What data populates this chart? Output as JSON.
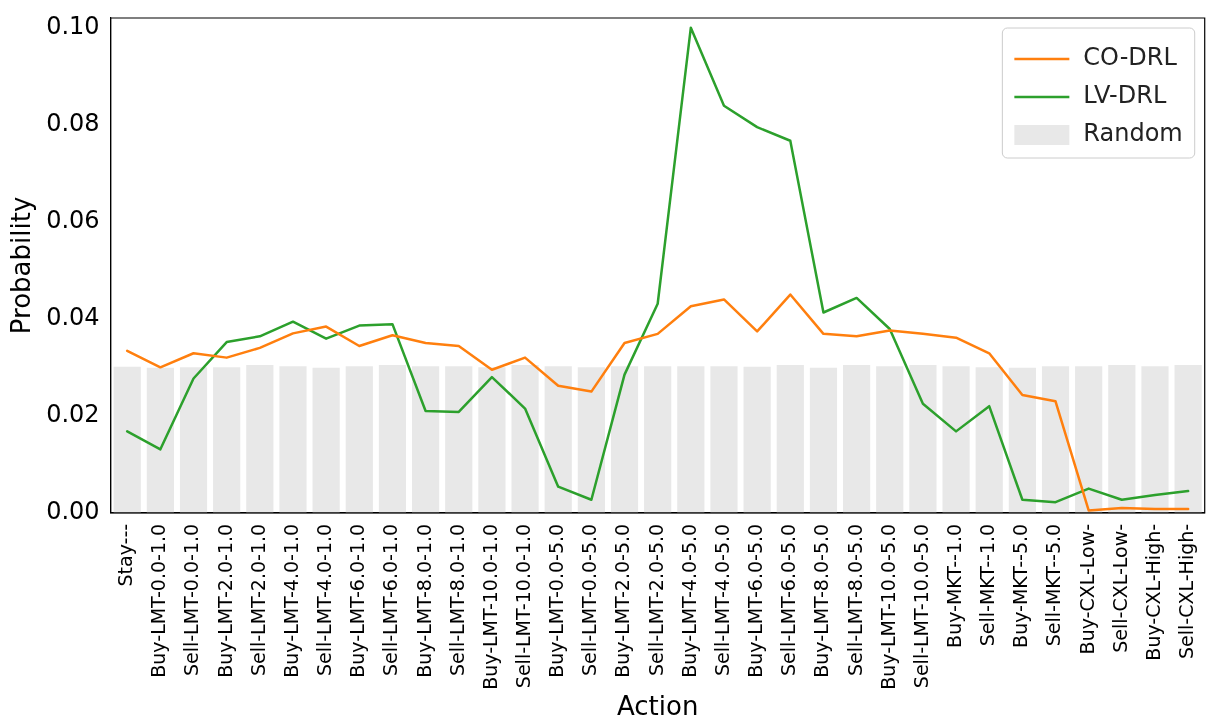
{
  "chart_data": {
    "type": "line",
    "xlabel": "Action",
    "ylabel": "Probability",
    "categories": [
      "Stay---",
      "Buy-LMT-0.0-1.0",
      "Sell-LMT-0.0-1.0",
      "Buy-LMT-2.0-1.0",
      "Sell-LMT-2.0-1.0",
      "Buy-LMT-4.0-1.0",
      "Sell-LMT-4.0-1.0",
      "Buy-LMT-6.0-1.0",
      "Sell-LMT-6.0-1.0",
      "Buy-LMT-8.0-1.0",
      "Sell-LMT-8.0-1.0",
      "Buy-LMT-10.0-1.0",
      "Sell-LMT-10.0-1.0",
      "Buy-LMT-0.0-5.0",
      "Sell-LMT-0.0-5.0",
      "Buy-LMT-2.0-5.0",
      "Sell-LMT-2.0-5.0",
      "Buy-LMT-4.0-5.0",
      "Sell-LMT-4.0-5.0",
      "Buy-LMT-6.0-5.0",
      "Sell-LMT-6.0-5.0",
      "Buy-LMT-8.0-5.0",
      "Sell-LMT-8.0-5.0",
      "Buy-LMT-10.0-5.0",
      "Sell-LMT-10.0-5.0",
      "Buy-MKT--1.0",
      "Sell-MKT--1.0",
      "Buy-MKT--5.0",
      "Sell-MKT--5.0",
      "Buy-CXL-Low-",
      "Sell-CXL-Low-",
      "Buy-CXL-High-",
      "Sell-CXL-High-"
    ],
    "series": [
      {
        "name": "CO-DRL",
        "color": "#ff7f0e",
        "values": [
          0.0334,
          0.03,
          0.0329,
          0.032,
          0.034,
          0.037,
          0.0384,
          0.0344,
          0.0366,
          0.035,
          0.0344,
          0.0295,
          0.032,
          0.0262,
          0.025,
          0.035,
          0.0369,
          0.0426,
          0.044,
          0.0374,
          0.045,
          0.0369,
          0.0364,
          0.0376,
          0.0369,
          0.0361,
          0.0329,
          0.0243,
          0.023,
          0.0005,
          0.001,
          0.0008,
          0.0008
        ]
      },
      {
        "name": "LV-DRL",
        "color": "#2ca02c",
        "values": [
          0.0168,
          0.0131,
          0.0277,
          0.0352,
          0.0364,
          0.0394,
          0.0359,
          0.0386,
          0.0389,
          0.021,
          0.0208,
          0.028,
          0.0215,
          0.0054,
          0.0027,
          0.0285,
          0.0431,
          0.1,
          0.0839,
          0.0795,
          0.0767,
          0.0413,
          0.0443,
          0.0379,
          0.0225,
          0.0168,
          0.022,
          0.0027,
          0.0022,
          0.005,
          0.0027,
          0.0037,
          0.0045
        ]
      },
      {
        "name": "Random",
        "type": "bar",
        "color": "#e8e8e8",
        "values": [
          0.0301,
          0.0299,
          0.03,
          0.03,
          0.0305,
          0.0302,
          0.0299,
          0.0302,
          0.0305,
          0.0302,
          0.0302,
          0.03,
          0.0305,
          0.0302,
          0.03,
          0.0302,
          0.0302,
          0.0302,
          0.0302,
          0.0301,
          0.0305,
          0.0299,
          0.0305,
          0.0302,
          0.0305,
          0.0302,
          0.03,
          0.0299,
          0.0302,
          0.0302,
          0.0305,
          0.0302,
          0.0305
        ]
      }
    ],
    "ylim": [
      0,
      0.102
    ],
    "yticks": [
      {
        "value": 0,
        "label": "0.00"
      },
      {
        "value": 0.02,
        "label": "0.02"
      },
      {
        "value": 0.04,
        "label": "0.04"
      },
      {
        "value": 0.06,
        "label": "0.06"
      },
      {
        "value": 0.08,
        "label": "0.08"
      },
      {
        "value": 0.1,
        "label": "0.10"
      }
    ],
    "legend": "top right",
    "grid": false,
    "marker": "none",
    "line_style": "solid"
  }
}
